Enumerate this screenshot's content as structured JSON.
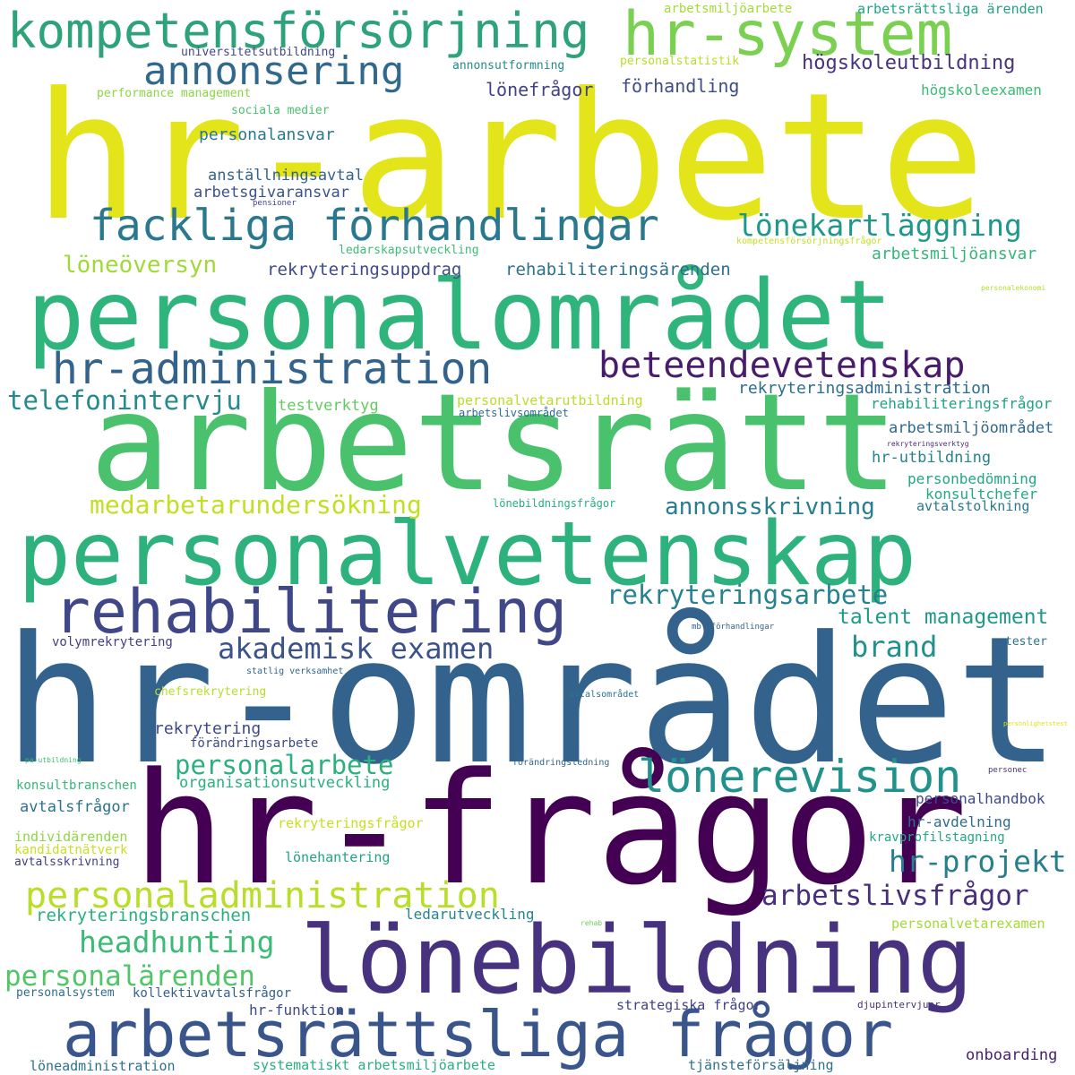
{
  "colors": {
    "background": "#ffffff",
    "palette": [
      "#440154",
      "#482878",
      "#3e4989",
      "#31688e",
      "#26828e",
      "#1f9e89",
      "#35b779",
      "#6ece58",
      "#b5de2b",
      "#fde725"
    ]
  },
  "words": [
    {
      "text": "hr-arbete",
      "color": "#e3e419"
    },
    {
      "text": "hr-området",
      "color": "#33638d"
    },
    {
      "text": "hr-frågor",
      "color": "#440154"
    },
    {
      "text": "arbetsrätt",
      "color": "#4ac16d"
    },
    {
      "text": "personalområdet",
      "color": "#2fb47c"
    },
    {
      "text": "personalvetenskap",
      "color": "#2db27d"
    },
    {
      "text": "lönebildning",
      "color": "#46327e"
    },
    {
      "text": "arbetsrättsliga frågor",
      "color": "#39558c"
    },
    {
      "text": "rehabilitering",
      "color": "#3f4788"
    },
    {
      "text": "kompetensförsörjning",
      "color": "#2ea37a"
    },
    {
      "text": "hr-system",
      "color": "#7ad151"
    },
    {
      "text": "fackliga förhandlingar",
      "color": "#2a788e"
    },
    {
      "text": "hr-administration",
      "color": "#33638d"
    },
    {
      "text": "beteendevetenskap",
      "color": "#481b6d"
    },
    {
      "text": "annonsering",
      "color": "#31688e"
    },
    {
      "text": "lönerevision",
      "color": "#21918c"
    },
    {
      "text": "personaladministration",
      "color": "#b8de29"
    },
    {
      "text": "lönekartläggning",
      "color": "#1f988b"
    },
    {
      "text": "akademisk examen",
      "color": "#3b528b"
    },
    {
      "text": "personalarbete",
      "color": "#2cb17e"
    },
    {
      "text": "medarbetarundersökning",
      "color": "#c2df23"
    },
    {
      "text": "rekryteringsarbete",
      "color": "#26828e"
    },
    {
      "text": "headhunting",
      "color": "#3bbb75"
    },
    {
      "text": "personalärenden",
      "color": "#52c569"
    },
    {
      "text": "arbetslivsfrågor",
      "color": "#472f7d"
    },
    {
      "text": "hr-projekt",
      "color": "#277f8e"
    },
    {
      "text": "annonsskrivning",
      "color": "#287d8e"
    },
    {
      "text": "talent management",
      "color": "#1f9a8a"
    },
    {
      "text": "brand",
      "color": "#21918c"
    },
    {
      "text": "telefonintervju",
      "color": "#238a8d"
    },
    {
      "text": "löneöversyn",
      "color": "#a0da39"
    },
    {
      "text": "högskoleutbildning",
      "color": "#453581"
    },
    {
      "text": "lönefrågor",
      "color": "#424186"
    },
    {
      "text": "förhandling",
      "color": "#3e4c8a"
    },
    {
      "text": "rekryteringsuppdrag",
      "color": "#3e4a89"
    },
    {
      "text": "rehabiliteringsärenden",
      "color": "#2d708e"
    },
    {
      "text": "arbetsmiljöansvar",
      "color": "#35b779"
    },
    {
      "text": "personalansvar",
      "color": "#2a788e"
    },
    {
      "text": "anställningsavtal",
      "color": "#33638d"
    },
    {
      "text": "arbetsgivaransvar",
      "color": "#3b528b"
    },
    {
      "text": "högskoleexamen",
      "color": "#3bbb75"
    },
    {
      "text": "sociala medier",
      "color": "#4ac16d"
    },
    {
      "text": "rekryteringsadministration",
      "color": "#2e6e8e"
    },
    {
      "text": "rehabiliteringsfrågor",
      "color": "#1fa188"
    },
    {
      "text": "testverktyg",
      "color": "#63cb5f"
    },
    {
      "text": "arbetsmiljöområdet",
      "color": "#31688e"
    },
    {
      "text": "hr-utbildning",
      "color": "#27808e"
    },
    {
      "text": "personbedömning",
      "color": "#22a785"
    },
    {
      "text": "konsultchefer",
      "color": "#24aa83"
    },
    {
      "text": "avtalstolkning",
      "color": "#2a788e"
    },
    {
      "text": "rekrytering",
      "color": "#3e4a89"
    },
    {
      "text": "förändringsarbete",
      "color": "#3e4989"
    },
    {
      "text": "organisationsutveckling",
      "color": "#2ab07f"
    },
    {
      "text": "personalhandbok",
      "color": "#3e4989"
    },
    {
      "text": "hr-avdelning",
      "color": "#2f6c8e"
    },
    {
      "text": "kravprofilstagning",
      "color": "#22a884"
    },
    {
      "text": "avtalsfrågor",
      "color": "#2c728e"
    },
    {
      "text": "individärenden",
      "color": "#8ed645"
    },
    {
      "text": "kandidatnätverk",
      "color": "#c8e020"
    },
    {
      "text": "avtalsskrivning",
      "color": "#424086"
    },
    {
      "text": "lönehantering",
      "color": "#20a386"
    },
    {
      "text": "rekryteringsfrågor",
      "color": "#c5e021"
    },
    {
      "text": "ledarutveckling",
      "color": "#25858e"
    },
    {
      "text": "rekryteringsbranschen",
      "color": "#29af7f"
    },
    {
      "text": "personalvetarexamen",
      "color": "#a2da37"
    },
    {
      "text": "personalsystem",
      "color": "#2f6c8e"
    },
    {
      "text": "kollektivavtalsfrågor",
      "color": "#34608d"
    },
    {
      "text": "hr-funktion",
      "color": "#3e4989"
    },
    {
      "text": "strategiska frågor",
      "color": "#424086"
    },
    {
      "text": "djupintervjuer",
      "color": "#46307e"
    },
    {
      "text": "onboarding",
      "color": "#481f70"
    },
    {
      "text": "löneadministration",
      "color": "#2c738e"
    },
    {
      "text": "systematiskt arbetsmiljöarbete",
      "color": "#2ab07f"
    },
    {
      "text": "tjänsteförsäljning",
      "color": "#2d708e"
    },
    {
      "text": "arbetsmiljöarbete",
      "color": "#a5db36"
    },
    {
      "text": "arbetsrättsliga ärenden",
      "color": "#20a486"
    },
    {
      "text": "universitetsutbildning",
      "color": "#3f4788"
    },
    {
      "text": "annonsutformning",
      "color": "#238a8d"
    },
    {
      "text": "personalstatistik",
      "color": "#b8de29"
    },
    {
      "text": "performance management",
      "color": "#8bd646"
    },
    {
      "text": "pensioner",
      "color": "#414487"
    },
    {
      "text": "ledarskapsutveckling",
      "color": "#3dbc74"
    },
    {
      "text": "kompetensförsörjningsfrågor",
      "color": "#c2df23"
    },
    {
      "text": "personalekonomi",
      "color": "#b2dd2d"
    },
    {
      "text": "personalvetarutbildning",
      "color": "#b8de29"
    },
    {
      "text": "arbetslivsområdet",
      "color": "#2e6d8e"
    },
    {
      "text": "rekryteringsverktyg",
      "color": "#472d7b"
    },
    {
      "text": "lönebildningsfrågor",
      "color": "#26ad81"
    },
    {
      "text": "volymrekrytering",
      "color": "#433e85"
    },
    {
      "text": "mbl-förhandlingar",
      "color": "#355f8d"
    },
    {
      "text": "tester",
      "color": "#2c728e"
    },
    {
      "text": "statlig verksamhet",
      "color": "#31688e"
    },
    {
      "text": "chefsrekrytering",
      "color": "#b5de2b"
    },
    {
      "text": "avtalsområdet",
      "color": "#2c718e"
    },
    {
      "text": "personlighetstest",
      "color": "#dde318"
    },
    {
      "text": "pa-utbildning",
      "color": "#3bbb75"
    },
    {
      "text": "förändringsledning",
      "color": "#31668e"
    },
    {
      "text": "personec",
      "color": "#46337f"
    },
    {
      "text": "konsultbranschen",
      "color": "#35b779"
    },
    {
      "text": "rehab",
      "color": "#6ccd5a"
    }
  ]
}
